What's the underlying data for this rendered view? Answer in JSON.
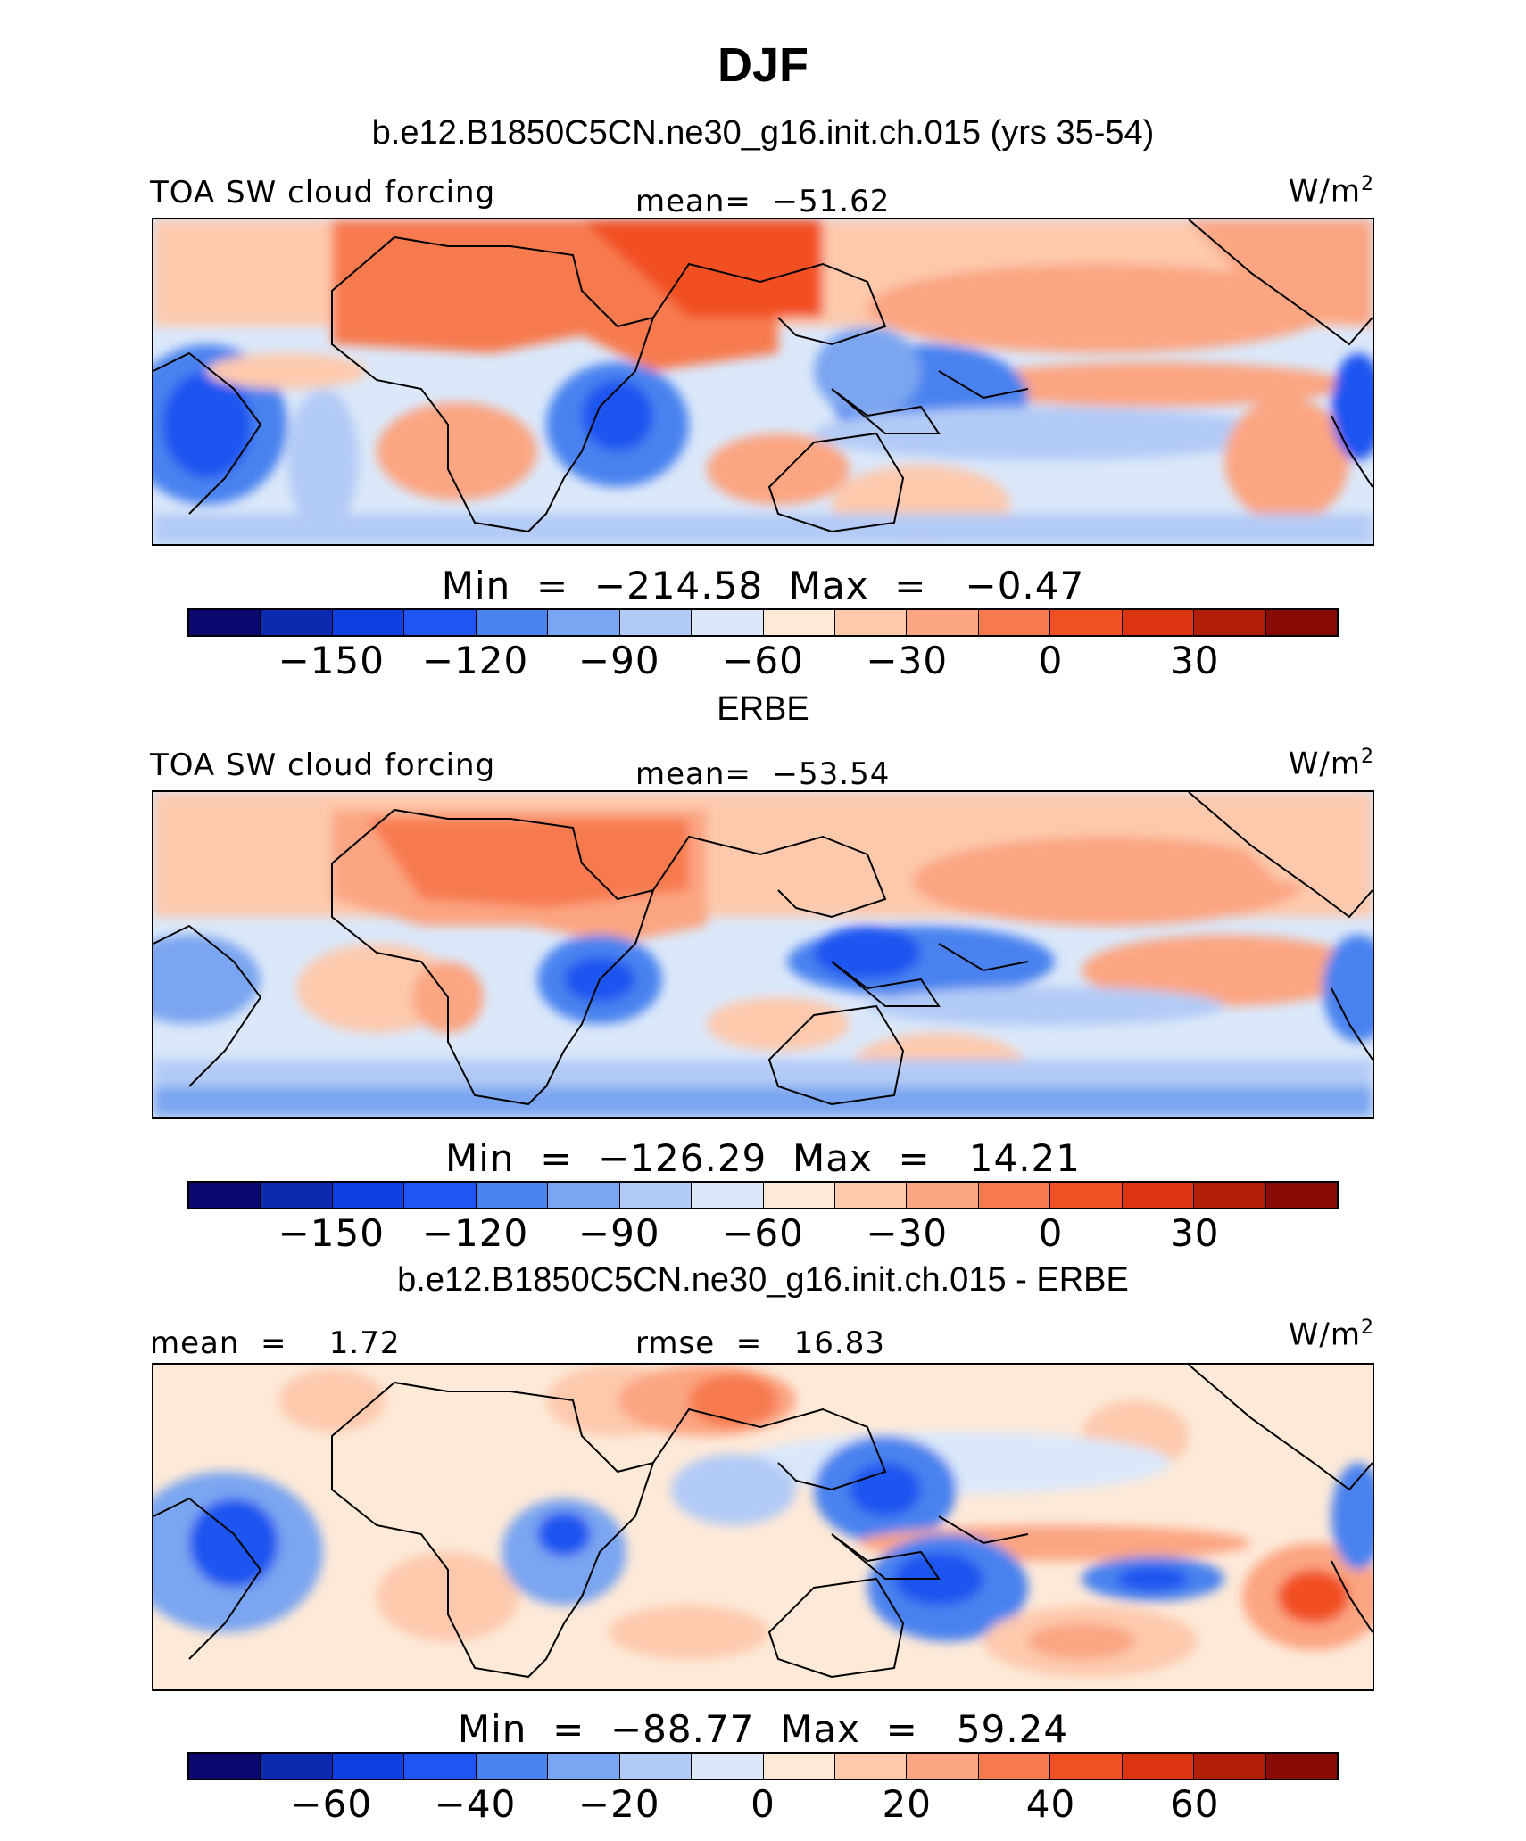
{
  "title": "DJF",
  "colors": [
    "#08086e",
    "#0b2ab0",
    "#0f3fe0",
    "#1f55f0",
    "#4a82ef",
    "#7aa5f0",
    "#b2cbf6",
    "#dbe8fa",
    "#fde9d8",
    "#fdc9ad",
    "#fba582",
    "#f77a4f",
    "#f14f24",
    "#dc3310",
    "#b01e08",
    "#880a04"
  ],
  "panels": [
    {
      "heading": "b.e12.B1850C5CN.ne30_g16.init.ch.015 (yrs 35-54)",
      "left_label": "TOA SW cloud forcing",
      "center_label": "mean=  −51.62",
      "units_base": "W/m",
      "units_exp": "2",
      "stats": "Min  =  −214.58  Max  =   −0.47",
      "ticks": [
        "−150",
        "−120",
        "−90",
        "−60",
        "−30",
        "0",
        "30"
      ]
    },
    {
      "heading": "ERBE",
      "left_label": "TOA SW cloud forcing",
      "center_label": "mean=  −53.54",
      "units_base": "W/m",
      "units_exp": "2",
      "stats": "Min  =  −126.29  Max  =   14.21",
      "ticks": [
        "−150",
        "−120",
        "−90",
        "−60",
        "−30",
        "0",
        "30"
      ]
    },
    {
      "heading": "b.e12.B1850C5CN.ne30_g16.init.ch.015 - ERBE",
      "left_label": "mean  =    1.72",
      "center_label": "rmse  =   16.83",
      "units_base": "W/m",
      "units_exp": "2",
      "stats": "Min  =  −88.77  Max  =   59.24",
      "ticks": [
        "−60",
        "−40",
        "−20",
        "0",
        "20",
        "40",
        "60"
      ]
    }
  ]
}
